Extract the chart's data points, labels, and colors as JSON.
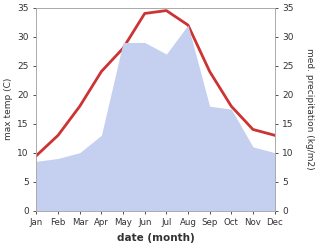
{
  "months": [
    "Jan",
    "Feb",
    "Mar",
    "Apr",
    "May",
    "Jun",
    "Jul",
    "Aug",
    "Sep",
    "Oct",
    "Nov",
    "Dec"
  ],
  "temp": [
    9.5,
    13.0,
    18.0,
    24.0,
    28.0,
    34.0,
    34.5,
    32.0,
    24.0,
    18.0,
    14.0,
    13.0
  ],
  "precip": [
    8.5,
    9.0,
    10.0,
    13.0,
    29.0,
    29.0,
    27.0,
    32.0,
    18.0,
    17.5,
    11.0,
    10.0
  ],
  "temp_color": "#cc3333",
  "precip_fill_color": "#c5cff0",
  "ylim": [
    0,
    35
  ],
  "yticks": [
    0,
    5,
    10,
    15,
    20,
    25,
    30,
    35
  ],
  "ylabel_left": "max temp (C)",
  "ylabel_right": "med. precipitation (kg/m2)",
  "xlabel": "date (month)",
  "bg_color": "#ffffff",
  "spine_color": "#aaaaaa",
  "temp_linewidth": 2.0
}
